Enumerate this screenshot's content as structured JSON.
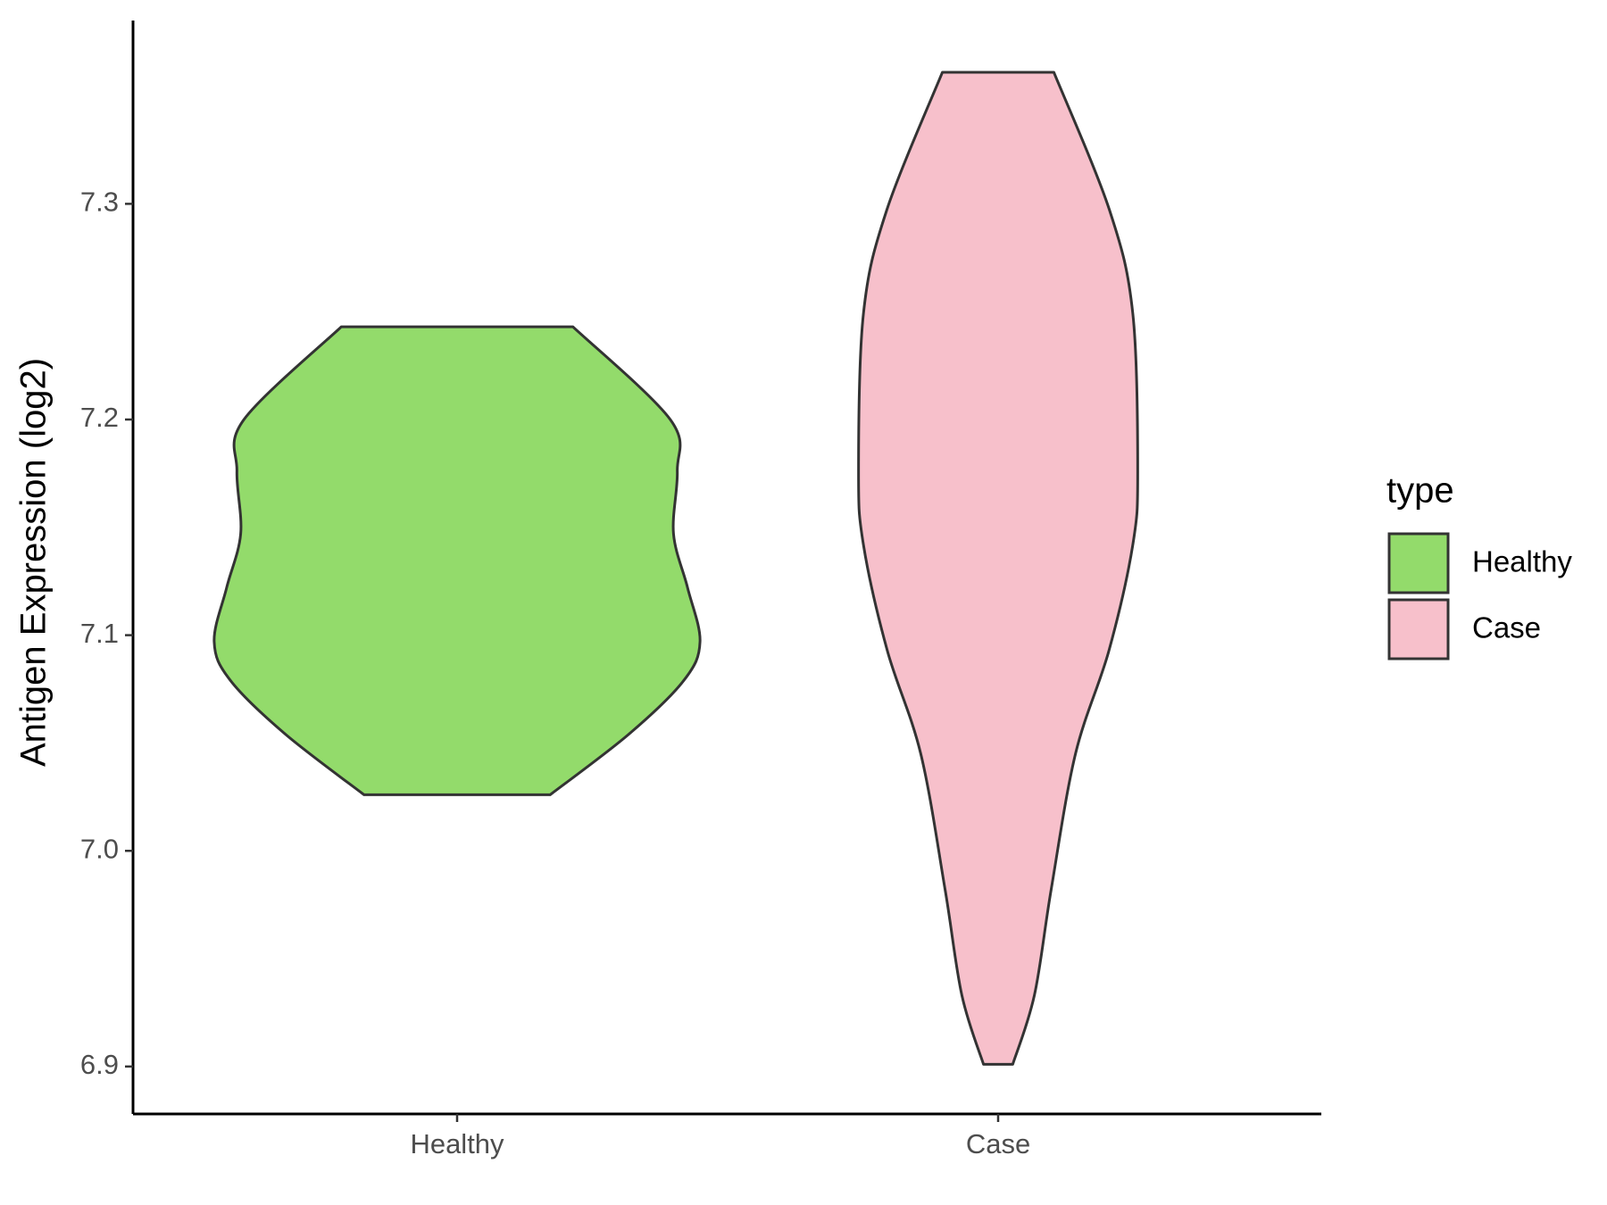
{
  "chart_data": {
    "type": "violin",
    "y_label": "Antigen Expression (log2)",
    "categories": [
      "Healthy",
      "Case"
    ],
    "series": [
      {
        "name": "Healthy",
        "color": "#93db6b",
        "y": [
          7.243,
          7.2,
          7.176,
          7.147,
          7.122,
          7.097,
          7.079,
          7.054,
          7.026
        ],
        "half_width": [
          0.214,
          0.394,
          0.407,
          0.4,
          0.426,
          0.449,
          0.419,
          0.317,
          0.172
        ]
      },
      {
        "name": "Case",
        "color": "#f7c0cb",
        "y": [
          7.361,
          7.297,
          7.249,
          7.176,
          7.142,
          7.093,
          7.045,
          6.982,
          6.933,
          6.901
        ],
        "half_width": [
          0.103,
          0.206,
          0.249,
          0.258,
          0.249,
          0.205,
          0.143,
          0.098,
          0.067,
          0.027
        ]
      }
    ],
    "ylim": [
      6.878,
      7.385
    ],
    "yticks": [
      {
        "value": 6.9,
        "label": "6.9"
      },
      {
        "value": 7.0,
        "label": "7.0"
      },
      {
        "value": 7.1,
        "label": "7.1"
      },
      {
        "value": 7.2,
        "label": "7.2"
      },
      {
        "value": 7.3,
        "label": "7.3"
      }
    ],
    "legend_title": "type",
    "legend_position": "right"
  }
}
